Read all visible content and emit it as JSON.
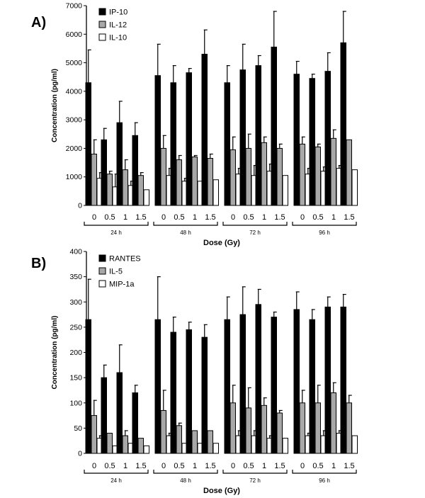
{
  "chart_data": [
    {
      "panel": "A)",
      "type": "bar",
      "ylabel": "Concentration (pg/ml)",
      "xlabel": "Dose (Gy)",
      "ylim": [
        0,
        7000
      ],
      "yticks": [
        0,
        1000,
        2000,
        3000,
        4000,
        5000,
        6000,
        7000
      ],
      "categories": [
        "0",
        "0.5",
        "1",
        "1.5",
        "0",
        "0.5",
        "1",
        "1.5",
        "0",
        "0.5",
        "1",
        "1.5",
        "0",
        "0.5",
        "1",
        "1.5"
      ],
      "groups": [
        {
          "label": "24 h",
          "count": 4
        },
        {
          "label": "48 h",
          "count": 4
        },
        {
          "label": "72 h",
          "count": 4
        },
        {
          "label": "96 h",
          "count": 4
        }
      ],
      "legend_position": "top-left",
      "series": [
        {
          "name": "IP-10",
          "color": "#000000",
          "values": [
            4300,
            2300,
            2900,
            2450,
            4550,
            4300,
            4650,
            5300,
            4300,
            4750,
            4900,
            5550,
            4600,
            4450,
            4700,
            5700
          ],
          "errors": [
            1150,
            400,
            750,
            450,
            1100,
            600,
            150,
            850,
            600,
            900,
            350,
            1250,
            450,
            150,
            650,
            1100
          ]
        },
        {
          "name": "IL-12",
          "color": "#a8a8a8",
          "values": [
            1800,
            1100,
            1250,
            1050,
            2000,
            1600,
            1700,
            1650,
            1950,
            2000,
            2200,
            2000,
            2150,
            2050,
            2350,
            2300
          ],
          "errors": [
            500,
            100,
            350,
            100,
            450,
            150,
            50,
            150,
            450,
            500,
            200,
            150,
            250,
            100,
            300,
            0
          ]
        },
        {
          "name": "IL-10",
          "color": "#ffffff",
          "values": [
            950,
            650,
            700,
            550,
            1050,
            850,
            850,
            900,
            1100,
            1050,
            1200,
            1050,
            1100,
            1200,
            1300,
            1250
          ],
          "errors": [
            200,
            450,
            150,
            0,
            250,
            100,
            0,
            0,
            200,
            350,
            250,
            0,
            200,
            150,
            100,
            0
          ]
        }
      ]
    },
    {
      "panel": "B)",
      "type": "bar",
      "ylabel": "Concentration (pg/ml)",
      "xlabel": "Dose (Gy)",
      "ylim": [
        0,
        400
      ],
      "yticks": [
        0,
        50,
        100,
        150,
        200,
        250,
        300,
        350,
        400
      ],
      "categories": [
        "0",
        "0.5",
        "1",
        "1.5",
        "0",
        "0.5",
        "1",
        "1.5",
        "0",
        "0.5",
        "1",
        "1.5",
        "0",
        "0.5",
        "1",
        "1.5"
      ],
      "groups": [
        {
          "label": "24 h",
          "count": 4
        },
        {
          "label": "48 h",
          "count": 4
        },
        {
          "label": "72 h",
          "count": 4
        },
        {
          "label": "96 h",
          "count": 4
        }
      ],
      "legend_position": "top-left",
      "series": [
        {
          "name": "RANTES",
          "color": "#000000",
          "values": [
            265,
            150,
            160,
            120,
            265,
            240,
            245,
            230,
            265,
            275,
            295,
            270,
            285,
            265,
            290,
            290
          ],
          "errors": [
            80,
            25,
            55,
            15,
            85,
            30,
            15,
            25,
            45,
            55,
            30,
            10,
            35,
            20,
            20,
            25
          ]
        },
        {
          "name": "IL-5",
          "color": "#a8a8a8",
          "values": [
            75,
            40,
            35,
            30,
            85,
            55,
            45,
            45,
            100,
            90,
            95,
            80,
            100,
            100,
            120,
            100
          ],
          "errors": [
            30,
            0,
            10,
            0,
            40,
            5,
            0,
            0,
            35,
            40,
            15,
            5,
            25,
            35,
            20,
            15
          ]
        },
        {
          "name": "MIP-1a",
          "color": "#ffffff",
          "values": [
            30,
            15,
            20,
            15,
            35,
            20,
            20,
            20,
            35,
            35,
            30,
            30,
            35,
            35,
            40,
            35
          ],
          "errors": [
            5,
            0,
            0,
            0,
            5,
            0,
            0,
            0,
            10,
            10,
            5,
            0,
            5,
            10,
            5,
            0
          ]
        }
      ]
    }
  ]
}
